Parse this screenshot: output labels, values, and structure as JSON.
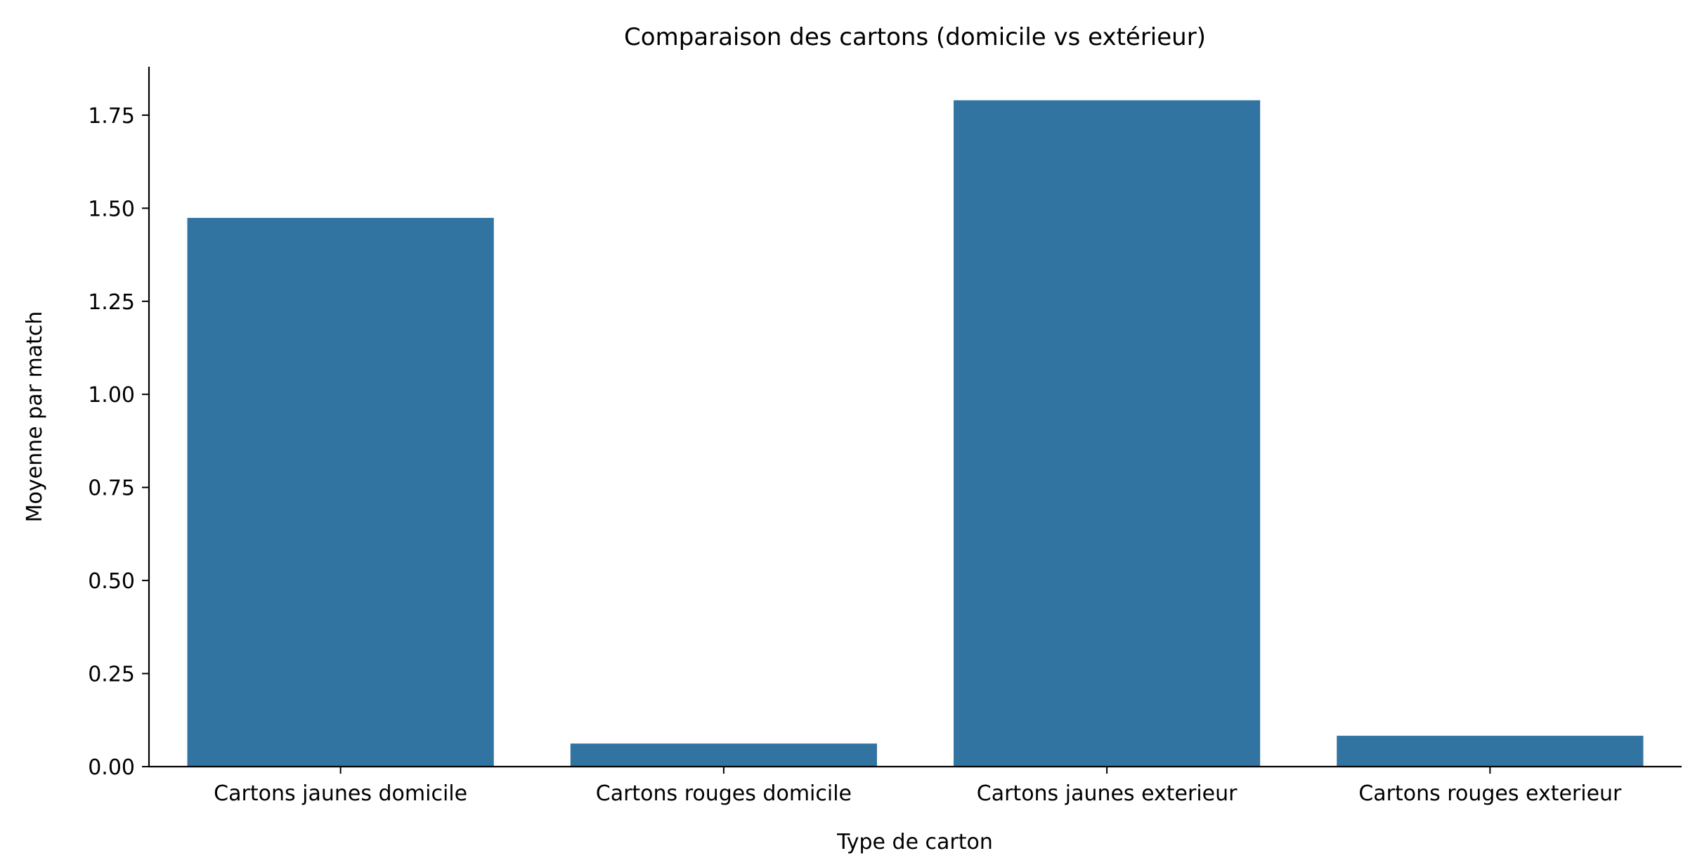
{
  "chart_data": {
    "type": "bar",
    "title": "Comparaison des cartons (domicile vs extérieur)",
    "xlabel": "Type de carton",
    "ylabel": "Moyenne par match",
    "categories": [
      "Cartons jaunes domicile",
      "Cartons rouges domicile",
      "Cartons jaunes exterieur",
      "Cartons rouges exterieur"
    ],
    "values": [
      1.474,
      0.062,
      1.79,
      0.083
    ],
    "ylim": [
      0,
      1.88
    ],
    "yticks": [
      0.0,
      0.25,
      0.5,
      0.75,
      1.0,
      1.25,
      1.5,
      1.75
    ],
    "ytick_labels": [
      "0.00",
      "0.25",
      "0.50",
      "0.75",
      "1.00",
      "1.25",
      "1.50",
      "1.75"
    ],
    "bar_color": "#3274a1",
    "grid": false,
    "spines": "left-bottom"
  }
}
